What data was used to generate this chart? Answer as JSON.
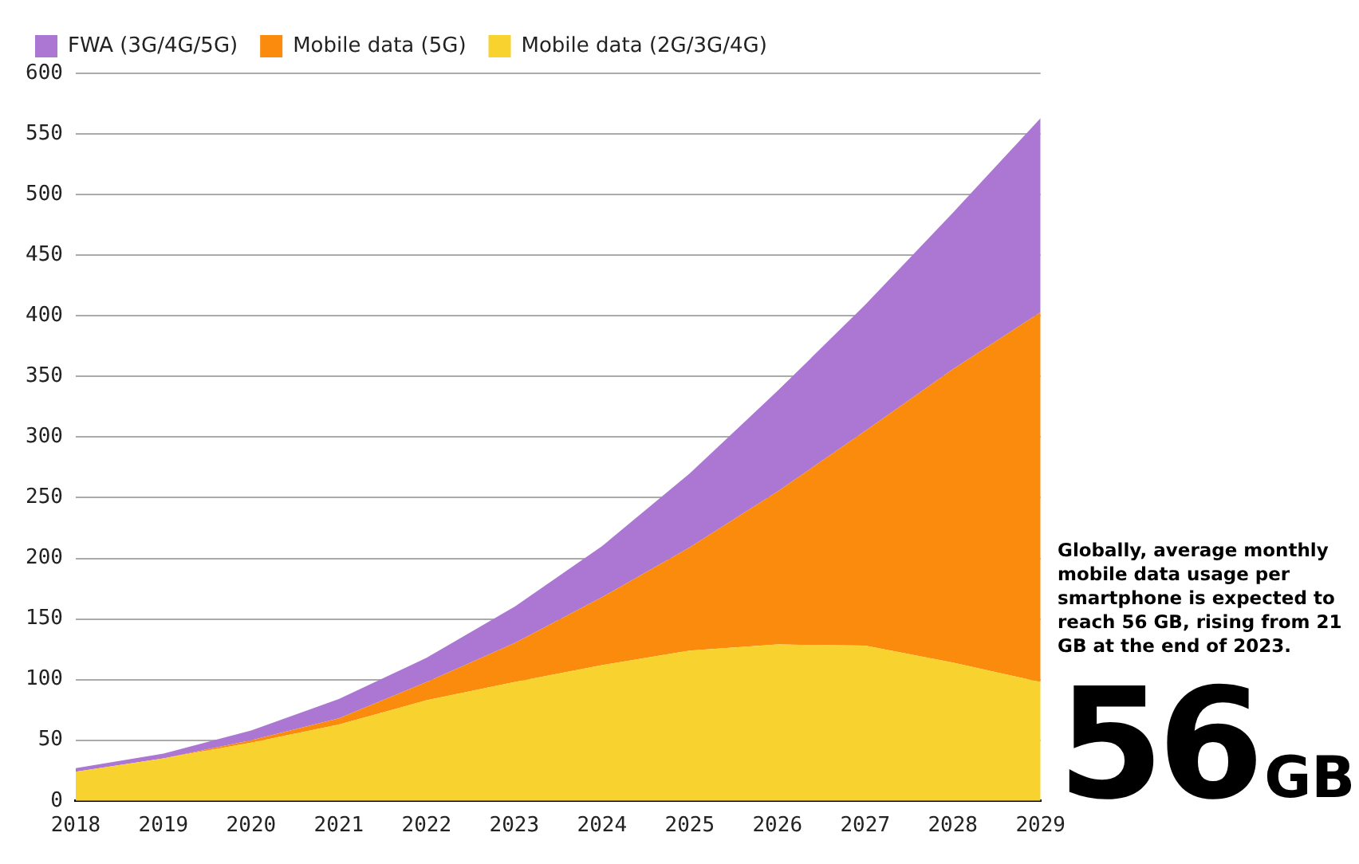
{
  "chart_data": {
    "type": "area",
    "stacked": true,
    "categories": [
      "2018",
      "2019",
      "2020",
      "2021",
      "2022",
      "2023",
      "2024",
      "2025",
      "2026",
      "2027",
      "2028",
      "2029"
    ],
    "series": [
      {
        "name": "Mobile data (2G/3G/4G)",
        "color": "#f8d22e",
        "values": [
          24,
          35,
          48,
          63,
          83,
          98,
          112,
          124,
          129,
          128,
          114,
          98
        ]
      },
      {
        "name": "Mobile data (5G)",
        "color": "#fb8b0c",
        "values": [
          0,
          0,
          2,
          5,
          15,
          32,
          56,
          85,
          126,
          177,
          242,
          305
        ]
      },
      {
        "name": "FWA (3G/4G/5G)",
        "color": "#ab77d2",
        "values": [
          3,
          4,
          8,
          16,
          20,
          30,
          42,
          61,
          83,
          104,
          129,
          160
        ]
      }
    ],
    "ylim": [
      0,
      600
    ],
    "yticks": [
      0,
      50,
      100,
      150,
      200,
      250,
      300,
      350,
      400,
      450,
      500,
      550,
      600
    ],
    "grid": "y",
    "legend": "top left",
    "annotations": [
      "Globally, average monthly mobile data usage per smartphone is expected to reach 56 GB, rising from 21 GB at the end of 2023.",
      "56",
      "GB"
    ]
  }
}
